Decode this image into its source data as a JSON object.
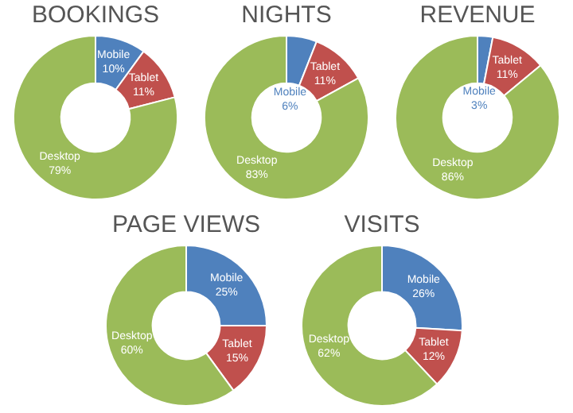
{
  "chart_data": [
    {
      "type": "donut",
      "title": "BOOKINGS",
      "categories": [
        "Mobile",
        "Tablet",
        "Desktop"
      ],
      "values": [
        10,
        11,
        79
      ],
      "value_labels": [
        "10%",
        "11%",
        "79%"
      ],
      "colors": [
        "#4f81bd",
        "#c0504d",
        "#9bbb59"
      ],
      "legend": false
    },
    {
      "type": "donut",
      "title": "NIGHTS",
      "categories": [
        "Mobile",
        "Tablet",
        "Desktop"
      ],
      "values": [
        6,
        11,
        83
      ],
      "value_labels": [
        "6%",
        "11%",
        "83%"
      ],
      "colors": [
        "#4f81bd",
        "#c0504d",
        "#9bbb59"
      ],
      "legend": false
    },
    {
      "type": "donut",
      "title": "REVENUE",
      "categories": [
        "Mobile",
        "Tablet",
        "Desktop"
      ],
      "values": [
        3,
        11,
        86
      ],
      "value_labels": [
        "3%",
        "11%",
        "86%"
      ],
      "colors": [
        "#4f81bd",
        "#c0504d",
        "#9bbb59"
      ],
      "legend": false
    },
    {
      "type": "donut",
      "title": "PAGE VIEWS",
      "categories": [
        "Mobile",
        "Tablet",
        "Desktop"
      ],
      "values": [
        25,
        15,
        60
      ],
      "value_labels": [
        "25%",
        "15%",
        "60%"
      ],
      "colors": [
        "#4f81bd",
        "#c0504d",
        "#9bbb59"
      ],
      "legend": false
    },
    {
      "type": "donut",
      "title": "VISITS",
      "categories": [
        "Mobile",
        "Tablet",
        "Desktop"
      ],
      "values": [
        26,
        12,
        62
      ],
      "value_labels": [
        "26%",
        "12%",
        "62%"
      ],
      "colors": [
        "#4f81bd",
        "#c0504d",
        "#9bbb59"
      ],
      "legend": false
    }
  ]
}
